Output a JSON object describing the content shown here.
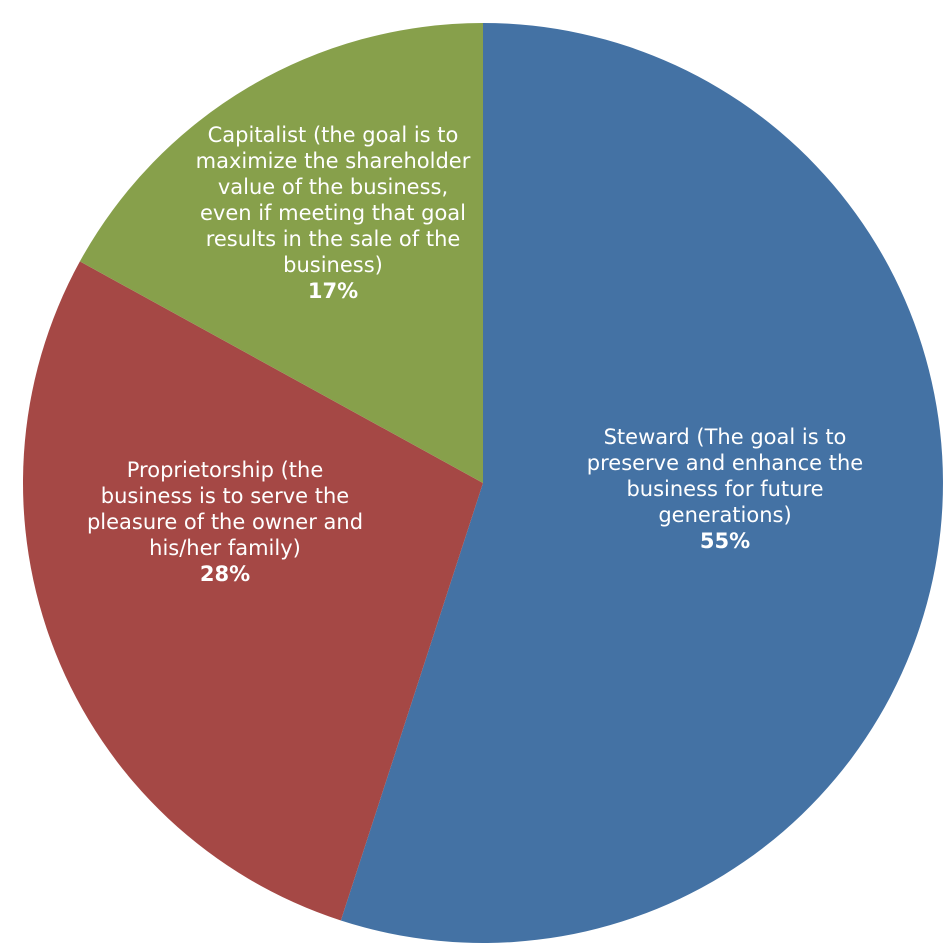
{
  "chart_data": {
    "type": "pie",
    "start_angle_deg": 0,
    "direction": "clockwise",
    "slices": [
      {
        "label_lines": [
          "Steward (The goal is to",
          "preserve and enhance the",
          "business for future",
          "generations)"
        ],
        "value": 55,
        "percent_label": "55%",
        "color": "#4472A4"
      },
      {
        "label_lines": [
          "Proprietorship (the",
          "business is to serve the",
          "pleasure of the owner and",
          "his/her family)"
        ],
        "value": 28,
        "percent_label": "28%",
        "color": "#A54845"
      },
      {
        "label_lines": [
          "Capitalist (the goal is to",
          "maximize the shareholder",
          "value of the business,",
          "even if meeting that goal",
          "results in the sale of the",
          "business)"
        ],
        "value": 17,
        "percent_label": "17%",
        "color": "#87A04B"
      }
    ]
  }
}
